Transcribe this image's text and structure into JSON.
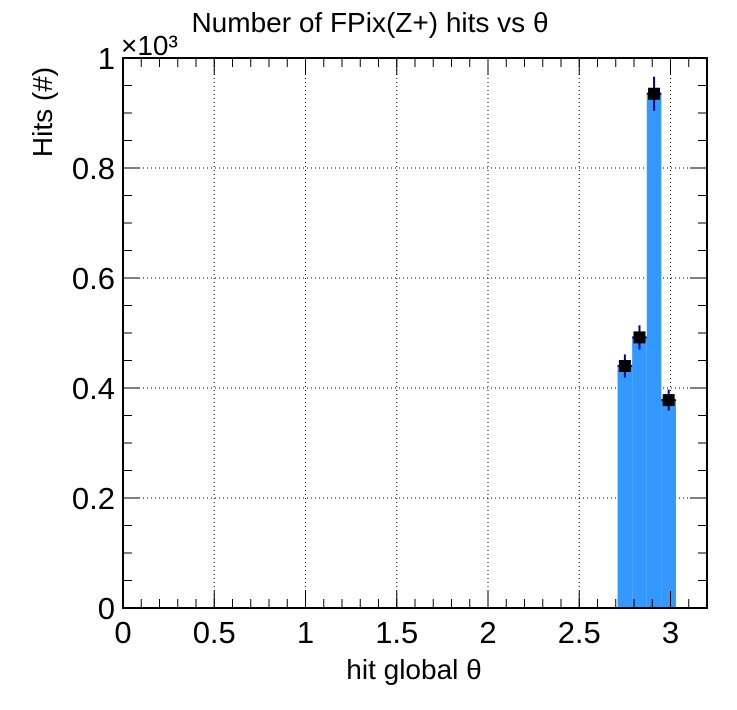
{
  "chart_data": {
    "type": "bar",
    "title": "Number of FPix(Z+) hits vs θ",
    "xlabel": "hit global θ",
    "ylabel": "Hits (#)",
    "y_multiplier_label": "×10³",
    "xlim": [
      0,
      3.2
    ],
    "ylim": [
      0,
      1.0
    ],
    "grid": true,
    "x_ticks": [
      0,
      0.5,
      1,
      1.5,
      2,
      2.5,
      3
    ],
    "x_tick_labels": [
      "0",
      "0.5",
      "1",
      "1.5",
      "2",
      "2.5",
      "3"
    ],
    "y_ticks": [
      0,
      0.2,
      0.4,
      0.6,
      0.8,
      1
    ],
    "y_tick_labels": [
      "0",
      "0.2",
      "0.4",
      "0.6",
      "0.8",
      "1"
    ],
    "bin_width": 0.08,
    "series": [
      {
        "color": "#3399ff",
        "bins": [
          {
            "x": 2.75,
            "value": 0.44,
            "error": 0.021
          },
          {
            "x": 2.83,
            "value": 0.492,
            "error": 0.022
          },
          {
            "x": 2.91,
            "value": 0.935,
            "error": 0.031
          },
          {
            "x": 2.99,
            "value": 0.378,
            "error": 0.019
          }
        ]
      }
    ]
  }
}
